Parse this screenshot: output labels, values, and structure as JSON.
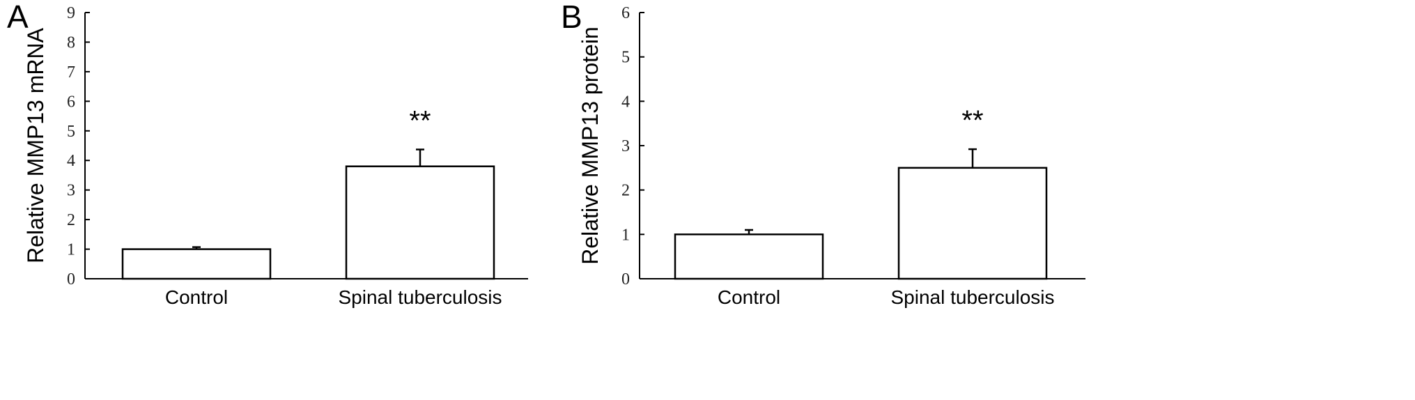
{
  "chart_data": [
    {
      "panel": "A",
      "type": "bar",
      "categories": [
        "Control",
        "Spinal tuberculosis"
      ],
      "values": [
        1.0,
        3.8
      ],
      "error": [
        0.07,
        0.57
      ],
      "annotations": [
        "",
        "**"
      ],
      "ylabel": "Relative MMP13 mRNA",
      "ylim": [
        0,
        9
      ],
      "yticks": [
        "0",
        "1",
        "2",
        "3",
        "4",
        "5",
        "6",
        "7",
        "8",
        "9"
      ],
      "grid": false
    },
    {
      "panel": "B",
      "type": "bar",
      "categories": [
        "Control",
        "Spinal tuberculosis"
      ],
      "values": [
        1.0,
        2.5
      ],
      "error": [
        0.1,
        0.42
      ],
      "annotations": [
        "",
        "**"
      ],
      "ylabel": "Relative MMP13 protein",
      "ylim": [
        0,
        6
      ],
      "yticks": [
        "0",
        "1",
        "2",
        "3",
        "4",
        "5",
        "6"
      ],
      "grid": false
    }
  ]
}
